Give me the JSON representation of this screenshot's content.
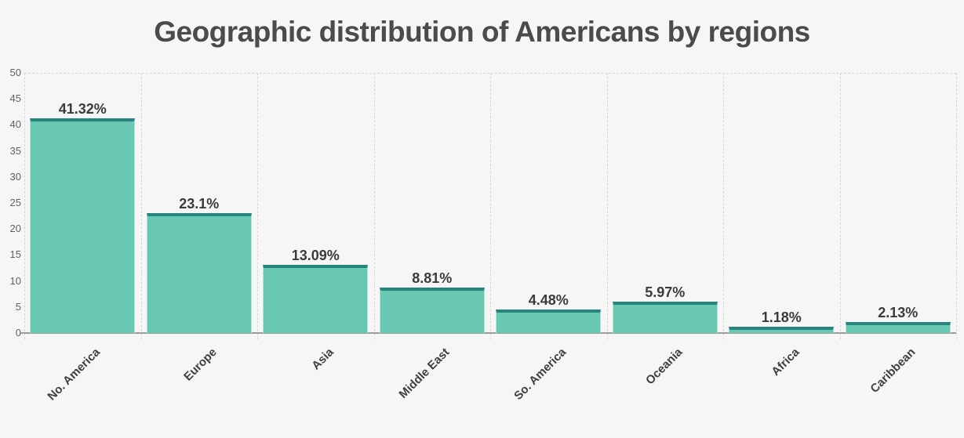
{
  "chart_data": {
    "type": "bar",
    "title": "Geographic distribution of Americans by regions",
    "categories": [
      "No. America",
      "Europe",
      "Asia",
      "Middle East",
      "So. America",
      "Oceania",
      "Africa",
      "Caribbean"
    ],
    "values": [
      41.32,
      23.1,
      13.09,
      8.81,
      4.48,
      5.97,
      1.18,
      2.13
    ],
    "labels": [
      "41.32%",
      "23.1%",
      "13.09%",
      "8.81%",
      "4.48%",
      "5.97%",
      "1.18%",
      "2.13%"
    ],
    "xlabel": "",
    "ylabel": "",
    "ylim": [
      0,
      50
    ],
    "yticks": [
      0,
      5,
      10,
      15,
      20,
      25,
      30,
      35,
      40,
      45,
      50
    ],
    "grid": "vertical-dashed-separators, dashed top line at 50, no intermediate horizontal gridlines",
    "legend_position": "none",
    "colors": {
      "background": "#f6f6f7",
      "bar_fill": "#68c8b2",
      "bar_top_band": "#28847e",
      "grid_line": "#d6d6d6",
      "axis_line": "#9d9d9d",
      "title_text": "#4b4b4b",
      "value_label_text": "#3b3b3b",
      "axis_tick_text": "#5f5f5f",
      "category_label_text": "#3f3f3f"
    }
  }
}
